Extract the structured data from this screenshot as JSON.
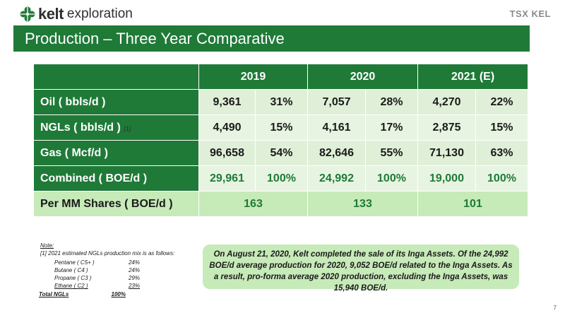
{
  "header": {
    "logo_brand": "kelt",
    "logo_suffix": "exploration",
    "exchange_logo": "TSX KEL"
  },
  "title": "Production – Three Year Comparative",
  "table": {
    "years": [
      "2019",
      "2020",
      "2021 (E)"
    ],
    "rows": [
      {
        "label": "Oil ( bbls/d )",
        "footnote": "",
        "values": [
          "9,361",
          "31%",
          "7,057",
          "28%",
          "4,270",
          "22%"
        ]
      },
      {
        "label": "NGLs ( bbls/d )",
        "footnote": "[1]",
        "values": [
          "4,490",
          "15%",
          "4,161",
          "17%",
          "2,875",
          "15%"
        ]
      },
      {
        "label": "Gas ( Mcf/d )",
        "footnote": "",
        "values": [
          "96,658",
          "54%",
          "82,646",
          "55%",
          "71,130",
          "63%"
        ]
      },
      {
        "label": "Combined ( BOE/d )",
        "footnote": "",
        "values": [
          "29,961",
          "100%",
          "24,992",
          "100%",
          "19,000",
          "100%"
        ]
      }
    ],
    "per_share": {
      "label": "Per MM Shares ( BOE/d )",
      "values": [
        "163",
        "133",
        "101"
      ]
    }
  },
  "note": {
    "heading": "Note:",
    "line1": "[1] 2021 estimated NGLs production mix is as follows:",
    "mix": [
      {
        "name": "Pentane ( C5+ )",
        "pct": "24%"
      },
      {
        "name": "Butane ( C4 )",
        "pct": "24%"
      },
      {
        "name": "Propane ( C3 )",
        "pct": "29%"
      },
      {
        "name": "Ethane ( C2 )",
        "pct": "23%"
      }
    ],
    "total_label": "Total NGLs",
    "total_pct": "100%"
  },
  "callout": "On August 21, 2020, Kelt completed the sale of its Inga Assets. Of the 24,992 BOE/d average production for 2020, 9,052 BOE/d related to the Inga Assets. As a result, pro-forma average 2020 production, excluding the Inga Assets, was 15,940 BOE/d.",
  "page_number": "7",
  "colors": {
    "brand_green": "#1f7a38",
    "light_green": "#c7eab9",
    "cell_green": "#e0f0d8"
  }
}
